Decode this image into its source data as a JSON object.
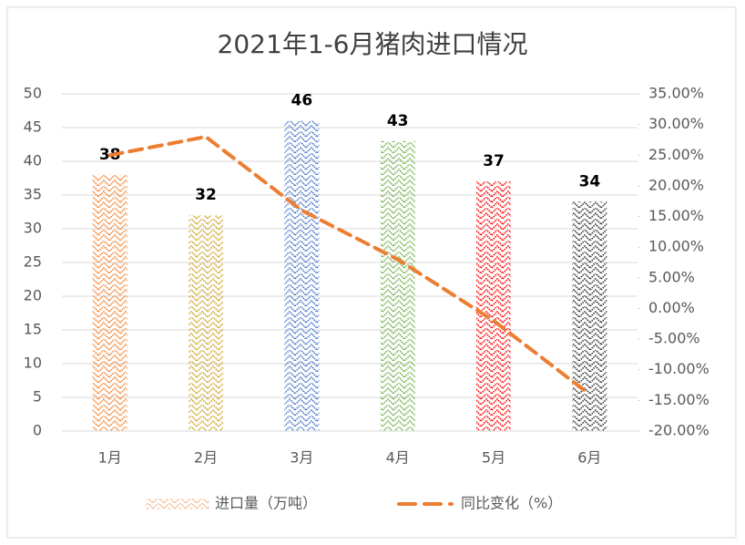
{
  "chart_data": {
    "type": "bar",
    "title": "2021年1-6月猪肉进口情况",
    "categories": [
      "1月",
      "2月",
      "3月",
      "4月",
      "5月",
      "6月"
    ],
    "series": [
      {
        "name": "进口量（万吨）",
        "type": "bar",
        "color": "#f4b183",
        "colors": [
          "#f07f2b",
          "#c9a227",
          "#4472c4",
          "#70ad47",
          "#ff0000",
          "#333333"
        ],
        "values": [
          38,
          32,
          46,
          43,
          37,
          34
        ]
      },
      {
        "name": "同比变化（%）",
        "type": "line",
        "axis": "y2",
        "color": "#ed7d31",
        "values": [
          25,
          28,
          16,
          8,
          -2,
          -14
        ]
      }
    ],
    "ylim": [
      0,
      50
    ],
    "yticks": [
      0,
      5,
      10,
      15,
      20,
      25,
      30,
      35,
      40,
      45,
      50
    ],
    "y2lim": [
      -20,
      35
    ],
    "y2ticks": [
      {
        "value": -20,
        "label": "-20.00%"
      },
      {
        "value": -15,
        "label": "-15.00%"
      },
      {
        "value": -10,
        "label": "-10.00%"
      },
      {
        "value": -5,
        "label": "-5.00%"
      },
      {
        "value": 0,
        "label": "0.00%"
      },
      {
        "value": 5,
        "label": "5.00%"
      },
      {
        "value": 10,
        "label": "10.00%"
      },
      {
        "value": 15,
        "label": "15.00%"
      },
      {
        "value": 20,
        "label": "20.00%"
      },
      {
        "value": 25,
        "label": "25.00%"
      },
      {
        "value": 30,
        "label": "30.00%"
      },
      {
        "value": 35,
        "label": "35.00%"
      }
    ],
    "grid": true
  }
}
